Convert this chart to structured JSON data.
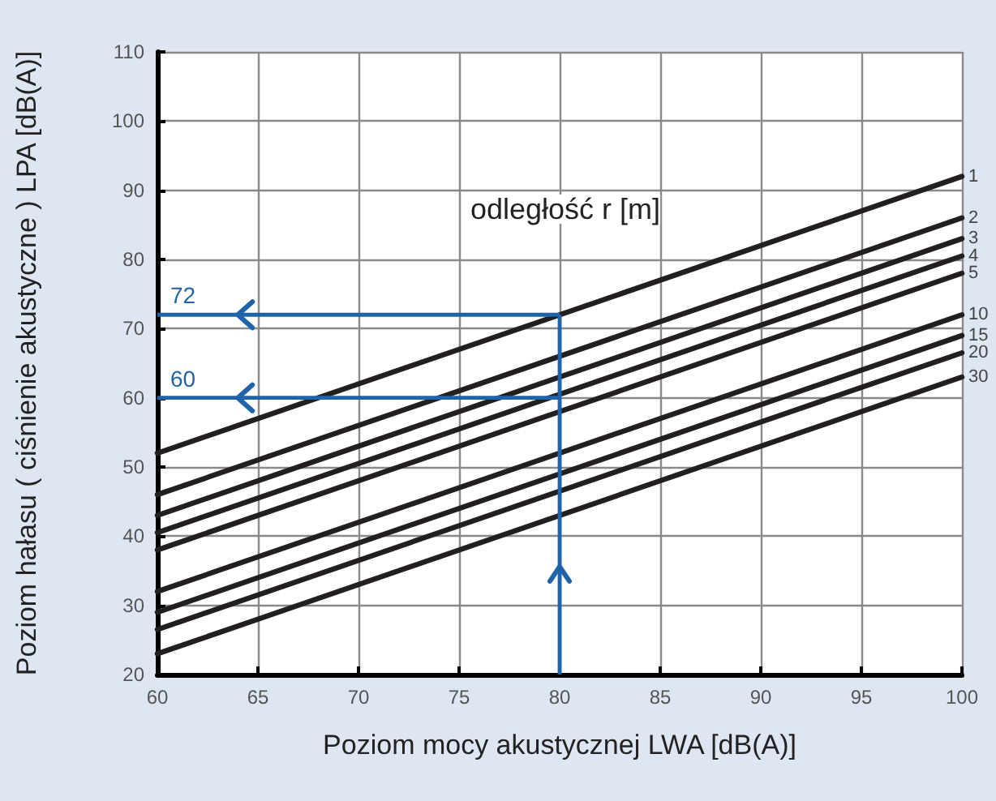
{
  "chart_data": {
    "type": "line",
    "xlabel": "Poziom mocy akustycznej LWA [dB(A)]",
    "ylabel": "Poziom hałasu ( ciśnienie akustyczne ) LPA [dB(A)]",
    "legend_title": "odległość r [m]",
    "xlim": [
      60,
      100
    ],
    "xticks": [
      60,
      65,
      70,
      75,
      80,
      85,
      90,
      95,
      100
    ],
    "ylim": [
      20,
      110
    ],
    "yticks": [
      20,
      30,
      40,
      50,
      60,
      70,
      80,
      90,
      100,
      110
    ],
    "grid": true,
    "legend": false,
    "marker": "none",
    "line_style": "solid",
    "x": [
      60,
      100
    ],
    "series": [
      {
        "name": "1",
        "color": "#231f20",
        "values": [
          52,
          92
        ]
      },
      {
        "name": "2",
        "color": "#231f20",
        "values": [
          46,
          86
        ]
      },
      {
        "name": "3",
        "color": "#231f20",
        "values": [
          43,
          83
        ]
      },
      {
        "name": "4",
        "color": "#231f20",
        "values": [
          40.5,
          80.5
        ]
      },
      {
        "name": "5",
        "color": "#231f20",
        "values": [
          38,
          78
        ]
      },
      {
        "name": "10",
        "color": "#231f20",
        "values": [
          32,
          72
        ]
      },
      {
        "name": "15",
        "color": "#231f20",
        "values": [
          29,
          69
        ]
      },
      {
        "name": "20",
        "color": "#231f20",
        "values": [
          26.5,
          66.5
        ]
      },
      {
        "name": "30",
        "color": "#231f20",
        "values": [
          23,
          63
        ]
      }
    ],
    "annotations": [
      {
        "text": "72",
        "x": 80,
        "y": 72
      },
      {
        "text": "60",
        "x": 80,
        "y": 60
      }
    ]
  }
}
